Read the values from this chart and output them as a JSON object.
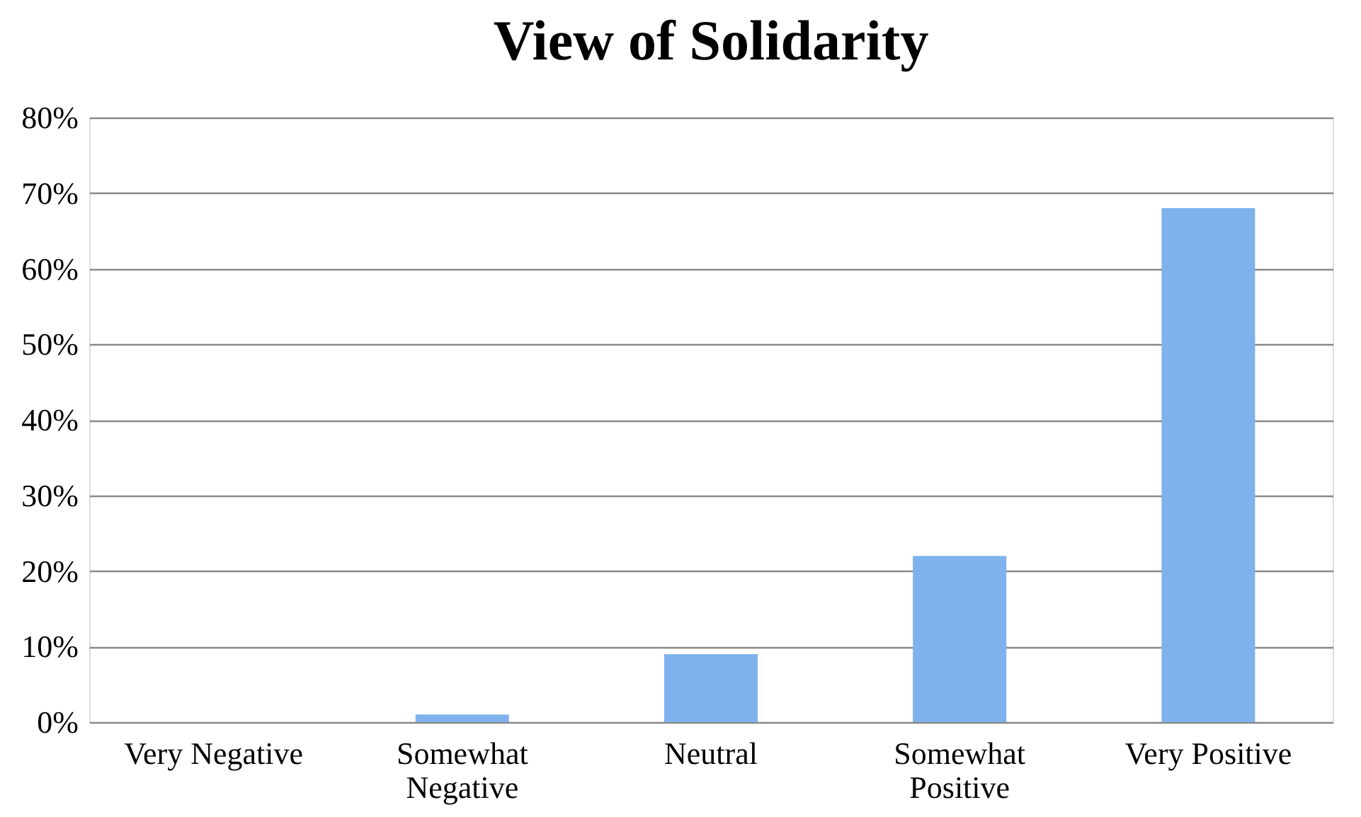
{
  "chart_data": {
    "type": "bar",
    "title": "View of Solidarity",
    "categories": [
      "Very Negative",
      "Somewhat Negative",
      "Neutral",
      "Somewhat Positive",
      "Very Positive"
    ],
    "values": [
      0,
      1,
      9,
      22,
      68
    ],
    "color": "#7fb2ec",
    "ylim": [
      0,
      80
    ],
    "yticks": [
      {
        "value": 0,
        "label": "0%"
      },
      {
        "value": 10,
        "label": "10%"
      },
      {
        "value": 20,
        "label": "20%"
      },
      {
        "value": 30,
        "label": "30%"
      },
      {
        "value": 40,
        "label": "40%"
      },
      {
        "value": 50,
        "label": "50%"
      },
      {
        "value": 60,
        "label": "60%"
      },
      {
        "value": 70,
        "label": "70%"
      },
      {
        "value": 80,
        "label": "80%"
      }
    ],
    "grid": "y"
  }
}
